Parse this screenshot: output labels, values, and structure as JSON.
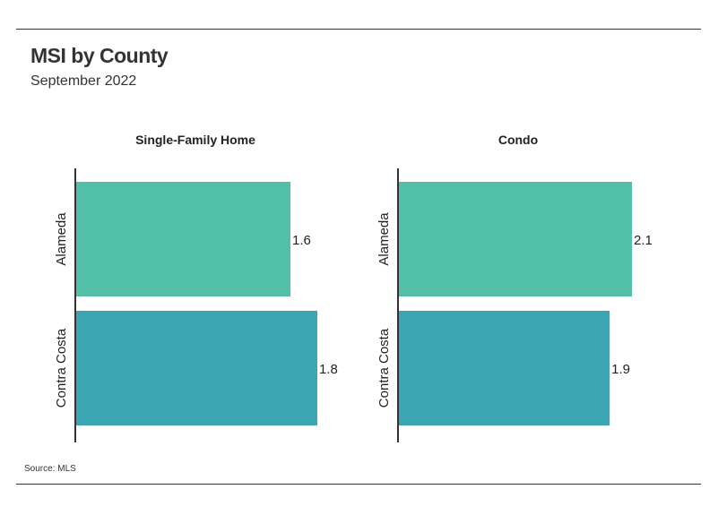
{
  "header": {
    "title": "MSI by County",
    "subtitle": "September 2022"
  },
  "footer": {
    "source": "Source:  MLS"
  },
  "colors": {
    "alameda": "#52bfa8",
    "contra_costa": "#3ba6b1",
    "axis": "#333333"
  },
  "chart_data": [
    {
      "type": "bar",
      "orientation": "horizontal",
      "title": "Single-Family Home",
      "categories": [
        "Alameda",
        "Contra Costa"
      ],
      "values": [
        1.6,
        1.8
      ],
      "value_labels": [
        "1.6",
        "1.8"
      ]
    },
    {
      "type": "bar",
      "orientation": "horizontal",
      "title": "Condo",
      "categories": [
        "Alameda",
        "Contra Costa"
      ],
      "values": [
        2.1,
        1.9
      ],
      "value_labels": [
        "2.1",
        "1.9"
      ]
    }
  ]
}
